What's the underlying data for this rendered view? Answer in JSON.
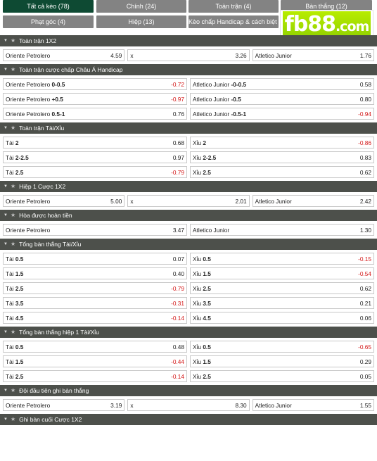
{
  "tabs": [
    {
      "label": "Tất cả kèo (78)",
      "active": true
    },
    {
      "label": "Chính (24)",
      "active": false
    },
    {
      "label": "Toàn trận (4)",
      "active": false
    },
    {
      "label": "Bàn thắng (12)",
      "active": false
    },
    {
      "label": "Phạt góc (4)",
      "active": false
    },
    {
      "label": "Hiệp (13)",
      "active": false
    },
    {
      "label": "Kèo chấp Handicap & cách biệt (3)",
      "active": false
    }
  ],
  "logo": {
    "text": "fb88",
    "suffix": ".com"
  },
  "colors": {
    "header_bg": "#4d504b",
    "active_tab": "#0e4a33",
    "inactive_tab": "#838383",
    "negative": "#d41919",
    "logo_green": "#9bdc00"
  },
  "icons": {
    "collapse": "chevron-down-icon",
    "favorite": "star-icon"
  },
  "sections": [
    {
      "title": "Toàn trận 1X2",
      "rows": [
        [
          {
            "label": "Oriente Petrolero",
            "odd": "4.59"
          },
          {
            "label": "x",
            "odd": "3.26"
          },
          {
            "label": "Atletico Junior",
            "odd": "1.76"
          }
        ]
      ]
    },
    {
      "title": "Toàn trận cược chấp Châu Á Handicap",
      "rows": [
        [
          {
            "label": "Oriente Petrolero",
            "line": "0-0.5",
            "odd": "-0.72"
          },
          {
            "label": "Atletico Junior",
            "line": "-0-0.5",
            "odd": "0.58"
          }
        ],
        [
          {
            "label": "Oriente Petrolero",
            "line": "+0.5",
            "odd": "-0.97"
          },
          {
            "label": "Atletico Junior",
            "line": "-0.5",
            "odd": "0.80"
          }
        ],
        [
          {
            "label": "Oriente Petrolero",
            "line": "0.5-1",
            "odd": "0.76"
          },
          {
            "label": "Atletico Junior",
            "line": "-0.5-1",
            "odd": "-0.94"
          }
        ]
      ]
    },
    {
      "title": "Toàn trận Tài/Xỉu",
      "rows": [
        [
          {
            "label": "Tài",
            "line": "2",
            "odd": "0.68"
          },
          {
            "label": "Xỉu",
            "line": "2",
            "odd": "-0.86"
          }
        ],
        [
          {
            "label": "Tài",
            "line": "2-2.5",
            "odd": "0.97"
          },
          {
            "label": "Xỉu",
            "line": "2-2.5",
            "odd": "0.83"
          }
        ],
        [
          {
            "label": "Tài",
            "line": "2.5",
            "odd": "-0.79"
          },
          {
            "label": "Xỉu",
            "line": "2.5",
            "odd": "0.62"
          }
        ]
      ]
    },
    {
      "title": "Hiệp 1 Cược 1X2",
      "rows": [
        [
          {
            "label": "Oriente Petrolero",
            "odd": "5.00"
          },
          {
            "label": "x",
            "odd": "2.01"
          },
          {
            "label": "Atletico Junior",
            "odd": "2.42"
          }
        ]
      ]
    },
    {
      "title": "Hòa được hoàn tiền",
      "rows": [
        [
          {
            "label": "Oriente Petrolero",
            "odd": "3.47"
          },
          {
            "label": "Atletico Junior",
            "odd": "1.30"
          }
        ]
      ]
    },
    {
      "title": "Tổng bàn thắng Tài/Xỉu",
      "rows": [
        [
          {
            "label": "Tài",
            "line": "0.5",
            "odd": "0.07"
          },
          {
            "label": "Xỉu",
            "line": "0.5",
            "odd": "-0.15"
          }
        ],
        [
          {
            "label": "Tài",
            "line": "1.5",
            "odd": "0.40"
          },
          {
            "label": "Xỉu",
            "line": "1.5",
            "odd": "-0.54"
          }
        ],
        [
          {
            "label": "Tài",
            "line": "2.5",
            "odd": "-0.79"
          },
          {
            "label": "Xỉu",
            "line": "2.5",
            "odd": "0.62"
          }
        ],
        [
          {
            "label": "Tài",
            "line": "3.5",
            "odd": "-0.31"
          },
          {
            "label": "Xỉu",
            "line": "3.5",
            "odd": "0.21"
          }
        ],
        [
          {
            "label": "Tài",
            "line": "4.5",
            "odd": "-0.14"
          },
          {
            "label": "Xỉu",
            "line": "4.5",
            "odd": "0.06"
          }
        ]
      ]
    },
    {
      "title": "Tổng bàn thắng hiệp 1 Tài/Xỉu",
      "rows": [
        [
          {
            "label": "Tài",
            "line": "0.5",
            "odd": "0.48"
          },
          {
            "label": "Xỉu",
            "line": "0.5",
            "odd": "-0.65"
          }
        ],
        [
          {
            "label": "Tài",
            "line": "1.5",
            "odd": "-0.44"
          },
          {
            "label": "Xỉu",
            "line": "1.5",
            "odd": "0.29"
          }
        ],
        [
          {
            "label": "Tài",
            "line": "2.5",
            "odd": "-0.14"
          },
          {
            "label": "Xỉu",
            "line": "2.5",
            "odd": "0.05"
          }
        ]
      ]
    },
    {
      "title": "Đội đầu tiên ghi bàn thắng",
      "rows": [
        [
          {
            "label": "Oriente Petrolero",
            "odd": "3.19"
          },
          {
            "label": "x",
            "odd": "8.30"
          },
          {
            "label": "Atletico Junior",
            "odd": "1.55"
          }
        ]
      ]
    },
    {
      "title": "Ghi bàn cuối Cược 1X2",
      "rows": []
    }
  ]
}
